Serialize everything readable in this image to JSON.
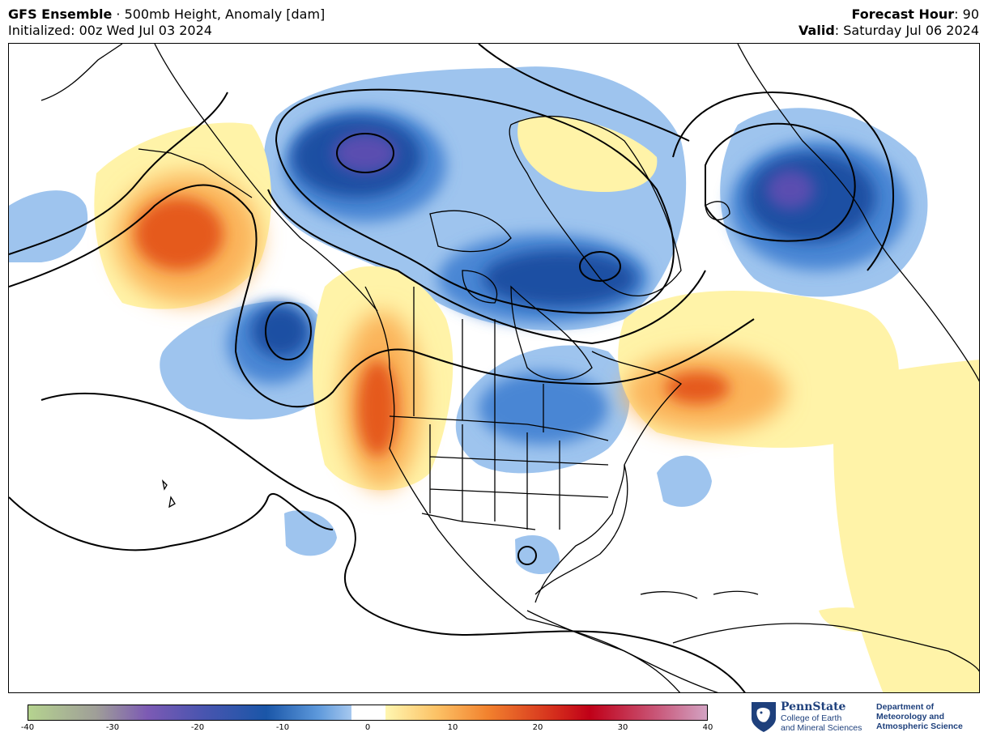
{
  "header": {
    "model_bold": "GFS Ensemble",
    "model_rest": " · 500mb Height, Anomaly [dam]",
    "init_text": "Initialized: 00z Wed Jul 03 2024",
    "fh_label": "Forecast Hour",
    "fh_value": ": 90",
    "valid_label": "Valid",
    "valid_value": ": Saturday Jul 06 2024"
  },
  "colorbar": {
    "ticks": [
      "-40",
      "-30",
      "-20",
      "-10",
      "0",
      "10",
      "20",
      "30",
      "40"
    ],
    "min": -40,
    "max": 40,
    "stops": [
      {
        "v": -40,
        "c": "#b5d38f"
      },
      {
        "v": -32,
        "c": "#9f9e98"
      },
      {
        "v": -26,
        "c": "#7c5ab4"
      },
      {
        "v": -20,
        "c": "#4d55b0"
      },
      {
        "v": -12,
        "c": "#1a56a8"
      },
      {
        "v": -6,
        "c": "#5c98db"
      },
      {
        "v": -2,
        "c": "#a6c8ef"
      },
      {
        "v": -2,
        "c": "#ffffff"
      },
      {
        "v": 2,
        "c": "#ffffff"
      },
      {
        "v": 2,
        "c": "#fff6b0"
      },
      {
        "v": 8,
        "c": "#fcc266"
      },
      {
        "v": 14,
        "c": "#f2822e"
      },
      {
        "v": 22,
        "c": "#d42c1c"
      },
      {
        "v": 26,
        "c": "#c00018"
      },
      {
        "v": 34,
        "c": "#c9587a"
      },
      {
        "v": 40,
        "c": "#d3a5c5"
      }
    ]
  },
  "colors": {
    "neg_light": "#9ec4ee",
    "neg_mid": "#4a86d4",
    "neg_dark": "#1c4fa3",
    "neg_core": "#5a4eb0",
    "pos_light": "#fff3a8",
    "pos_mid": "#fbb45a",
    "pos_dark": "#e55a1f",
    "brand": "#1e407c"
  },
  "logo": {
    "name": "PennState",
    "sub_line1": "College of Earth",
    "sub_line2": "and Mineral Sciences",
    "dept_line1": "Department of",
    "dept_line2": "Meteorology and",
    "dept_line3": "Atmospheric Science"
  }
}
